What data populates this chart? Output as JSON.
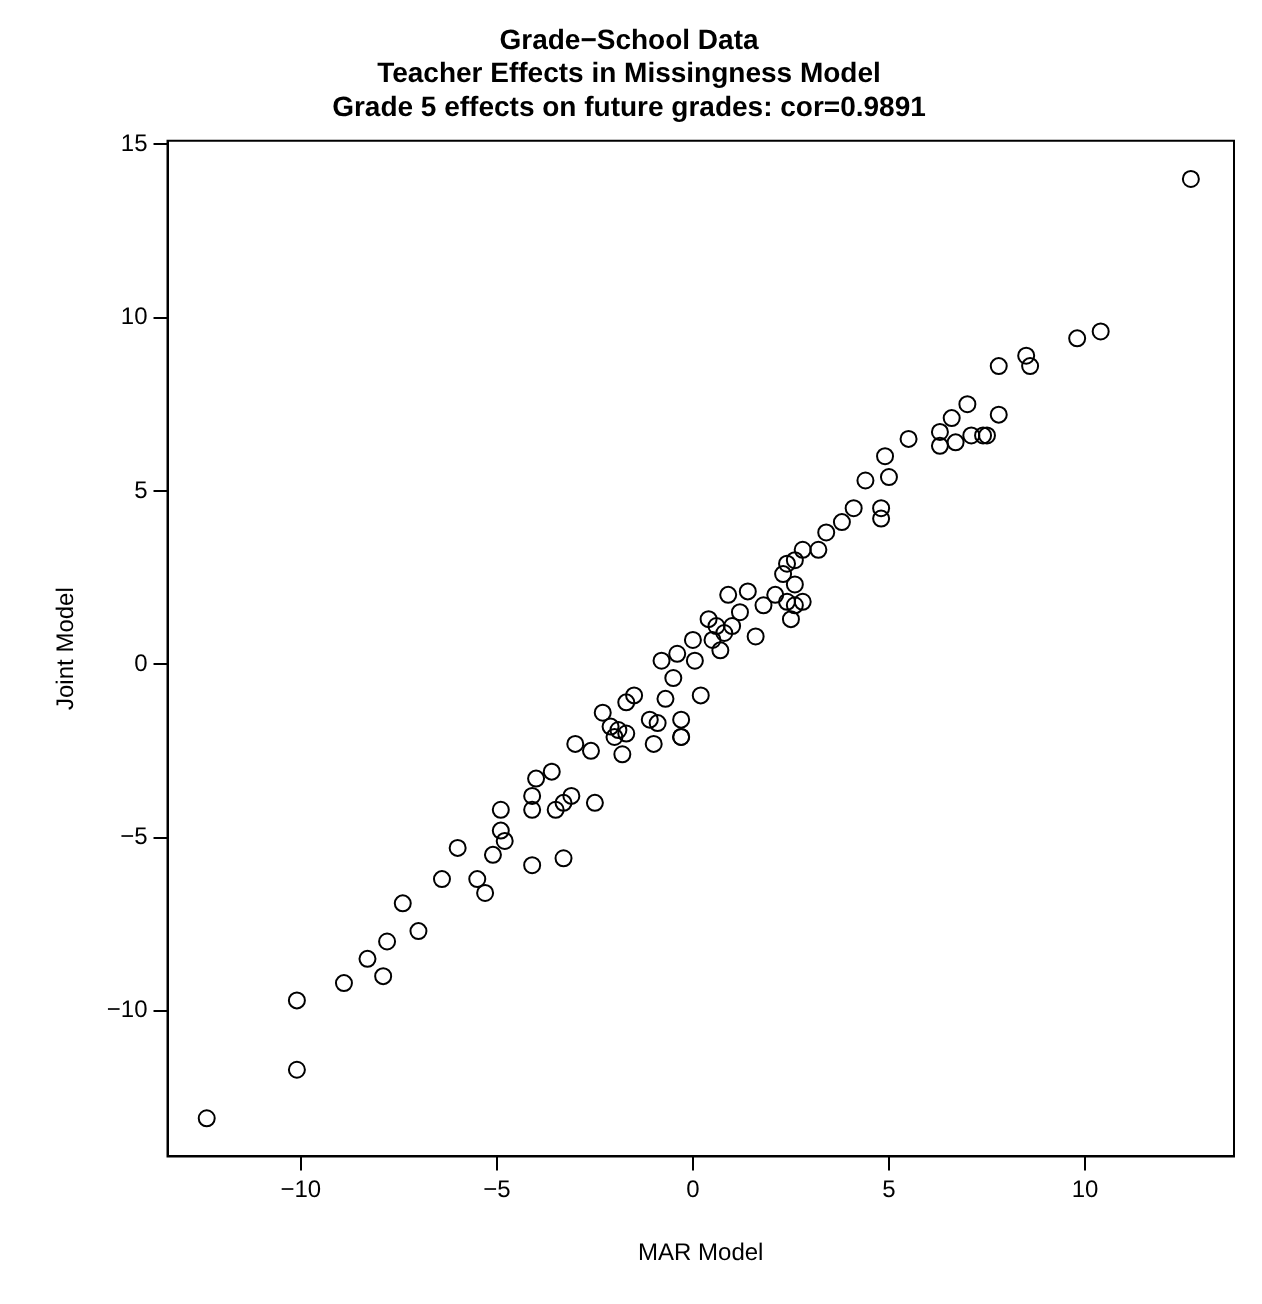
{
  "chart_data": {
    "type": "scatter",
    "title": "Grade−School Data",
    "subtitle": "Teacher Effects in Missingness Model\nGrade 5 effects on future grades: cor=0.9891",
    "xlabel": "MAR Model",
    "ylabel": "Joint Model",
    "marker": "circle",
    "grid": false,
    "legend": false,
    "xlim": [
      -13.4,
      13.8
    ],
    "ylim": [
      -14.2,
      15.1
    ],
    "xticks": [
      -10,
      -5,
      0,
      5,
      10
    ],
    "yticks": [
      -10,
      -5,
      0,
      5,
      10,
      15
    ],
    "series": [
      {
        "color": "#000000",
        "x": [
          -12.4,
          -10.1,
          -10.1,
          -8.9,
          -8.3,
          -7.9,
          -7.8,
          -7.4,
          -7.0,
          -6.4,
          -6.0,
          -5.5,
          -5.3,
          -5.1,
          -4.9,
          -4.9,
          -4.8,
          -4.1,
          -4.1,
          -4.0,
          -4.1,
          -3.6,
          -3.3,
          -3.3,
          -3.5,
          -3.1,
          -3.0,
          -2.6,
          -2.5,
          -2.3,
          -2.1,
          -1.9,
          -2.0,
          -1.7,
          -1.8,
          -1.5,
          -1.7,
          -1.1,
          -1.0,
          -0.9,
          -0.7,
          -0.8,
          -0.5,
          -0.3,
          -0.3,
          -0.3,
          -0.4,
          0.0,
          0.2,
          0.05,
          0.4,
          0.6,
          0.5,
          0.7,
          0.8,
          0.9,
          1.2,
          1.0,
          1.4,
          1.6,
          1.8,
          2.1,
          2.3,
          2.4,
          2.4,
          2.6,
          2.5,
          2.6,
          2.8,
          2.6,
          2.8,
          3.2,
          3.4,
          3.8,
          4.1,
          4.4,
          4.8,
          4.8,
          5.0,
          4.9,
          5.5,
          6.3,
          6.3,
          6.6,
          6.7,
          7.1,
          7.0,
          7.4,
          7.5,
          7.8,
          7.8,
          8.5,
          8.6,
          9.8,
          10.4,
          12.7
        ],
        "values": [
          -13.1,
          -11.7,
          -9.7,
          -9.2,
          -8.5,
          -9.0,
          -8.0,
          -6.9,
          -7.7,
          -6.2,
          -5.3,
          -6.2,
          -6.6,
          -5.5,
          -4.8,
          -4.2,
          -5.1,
          -5.8,
          -4.2,
          -3.3,
          -3.8,
          -3.1,
          -4.0,
          -5.6,
          -4.2,
          -3.8,
          -2.3,
          -2.5,
          -4.0,
          -1.4,
          -1.8,
          -1.9,
          -2.1,
          -2.0,
          -2.6,
          -0.9,
          -1.1,
          -1.6,
          -2.3,
          -1.7,
          -1.0,
          0.1,
          -0.4,
          -1.6,
          -2.1,
          -2.1,
          0.3,
          0.7,
          -0.9,
          0.1,
          1.3,
          1.1,
          0.7,
          0.4,
          0.9,
          2.0,
          1.5,
          1.1,
          2.1,
          0.8,
          1.7,
          2.0,
          2.6,
          2.9,
          1.8,
          1.7,
          1.3,
          3.0,
          3.3,
          2.3,
          1.8,
          3.3,
          3.8,
          4.1,
          4.5,
          5.3,
          4.5,
          4.2,
          5.4,
          6.0,
          6.5,
          6.3,
          6.7,
          7.1,
          6.4,
          6.6,
          7.5,
          6.6,
          6.6,
          7.2,
          8.6,
          8.9,
          8.6,
          9.4,
          9.6,
          14.0
        ]
      }
    ]
  }
}
